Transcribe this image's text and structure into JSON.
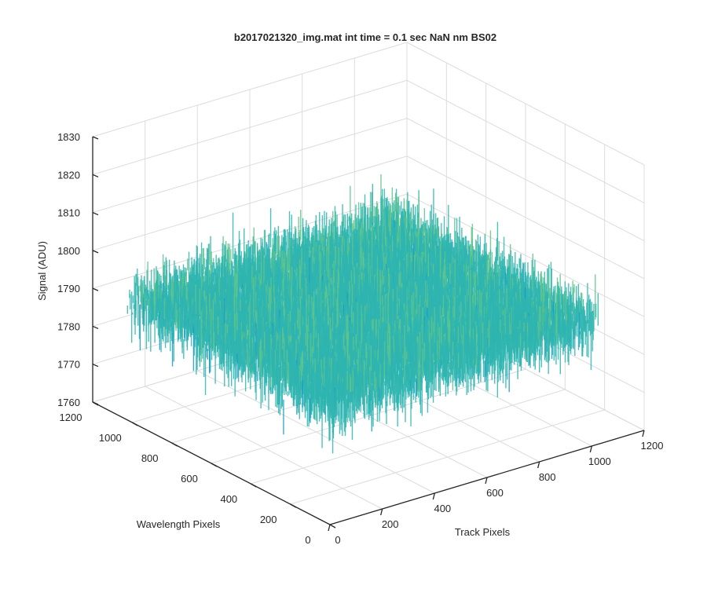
{
  "chart_data": {
    "type": "surface",
    "title": "b2017021320_img.mat int time = 0.1 sec  NaN nm BS02",
    "xlabel": "Track Pixels",
    "ylabel": "Wavelength Pixels",
    "zlabel": "Signal (ADU)",
    "xlim": [
      0,
      1200
    ],
    "ylim": [
      0,
      1200
    ],
    "zlim": [
      1760,
      1830
    ],
    "x_ticks": [
      "0",
      "200",
      "400",
      "600",
      "800",
      "1000",
      "1200"
    ],
    "y_ticks": [
      "0",
      "200",
      "400",
      "600",
      "800",
      "1000",
      "1200"
    ],
    "z_ticks": [
      "1760",
      "1770",
      "1780",
      "1790",
      "1800",
      "1810",
      "1820",
      "1830"
    ],
    "data_extent": {
      "x": [
        0,
        1024
      ],
      "y": [
        0,
        1024
      ]
    },
    "surface_mean": 1792,
    "surface_min": 1768,
    "surface_max": 1823,
    "grid": true,
    "colormap": [
      "#0f6fc2",
      "#1a9ac9",
      "#2fb5b0",
      "#5fc48c",
      "#a8c85f",
      "#d9c23e"
    ]
  }
}
